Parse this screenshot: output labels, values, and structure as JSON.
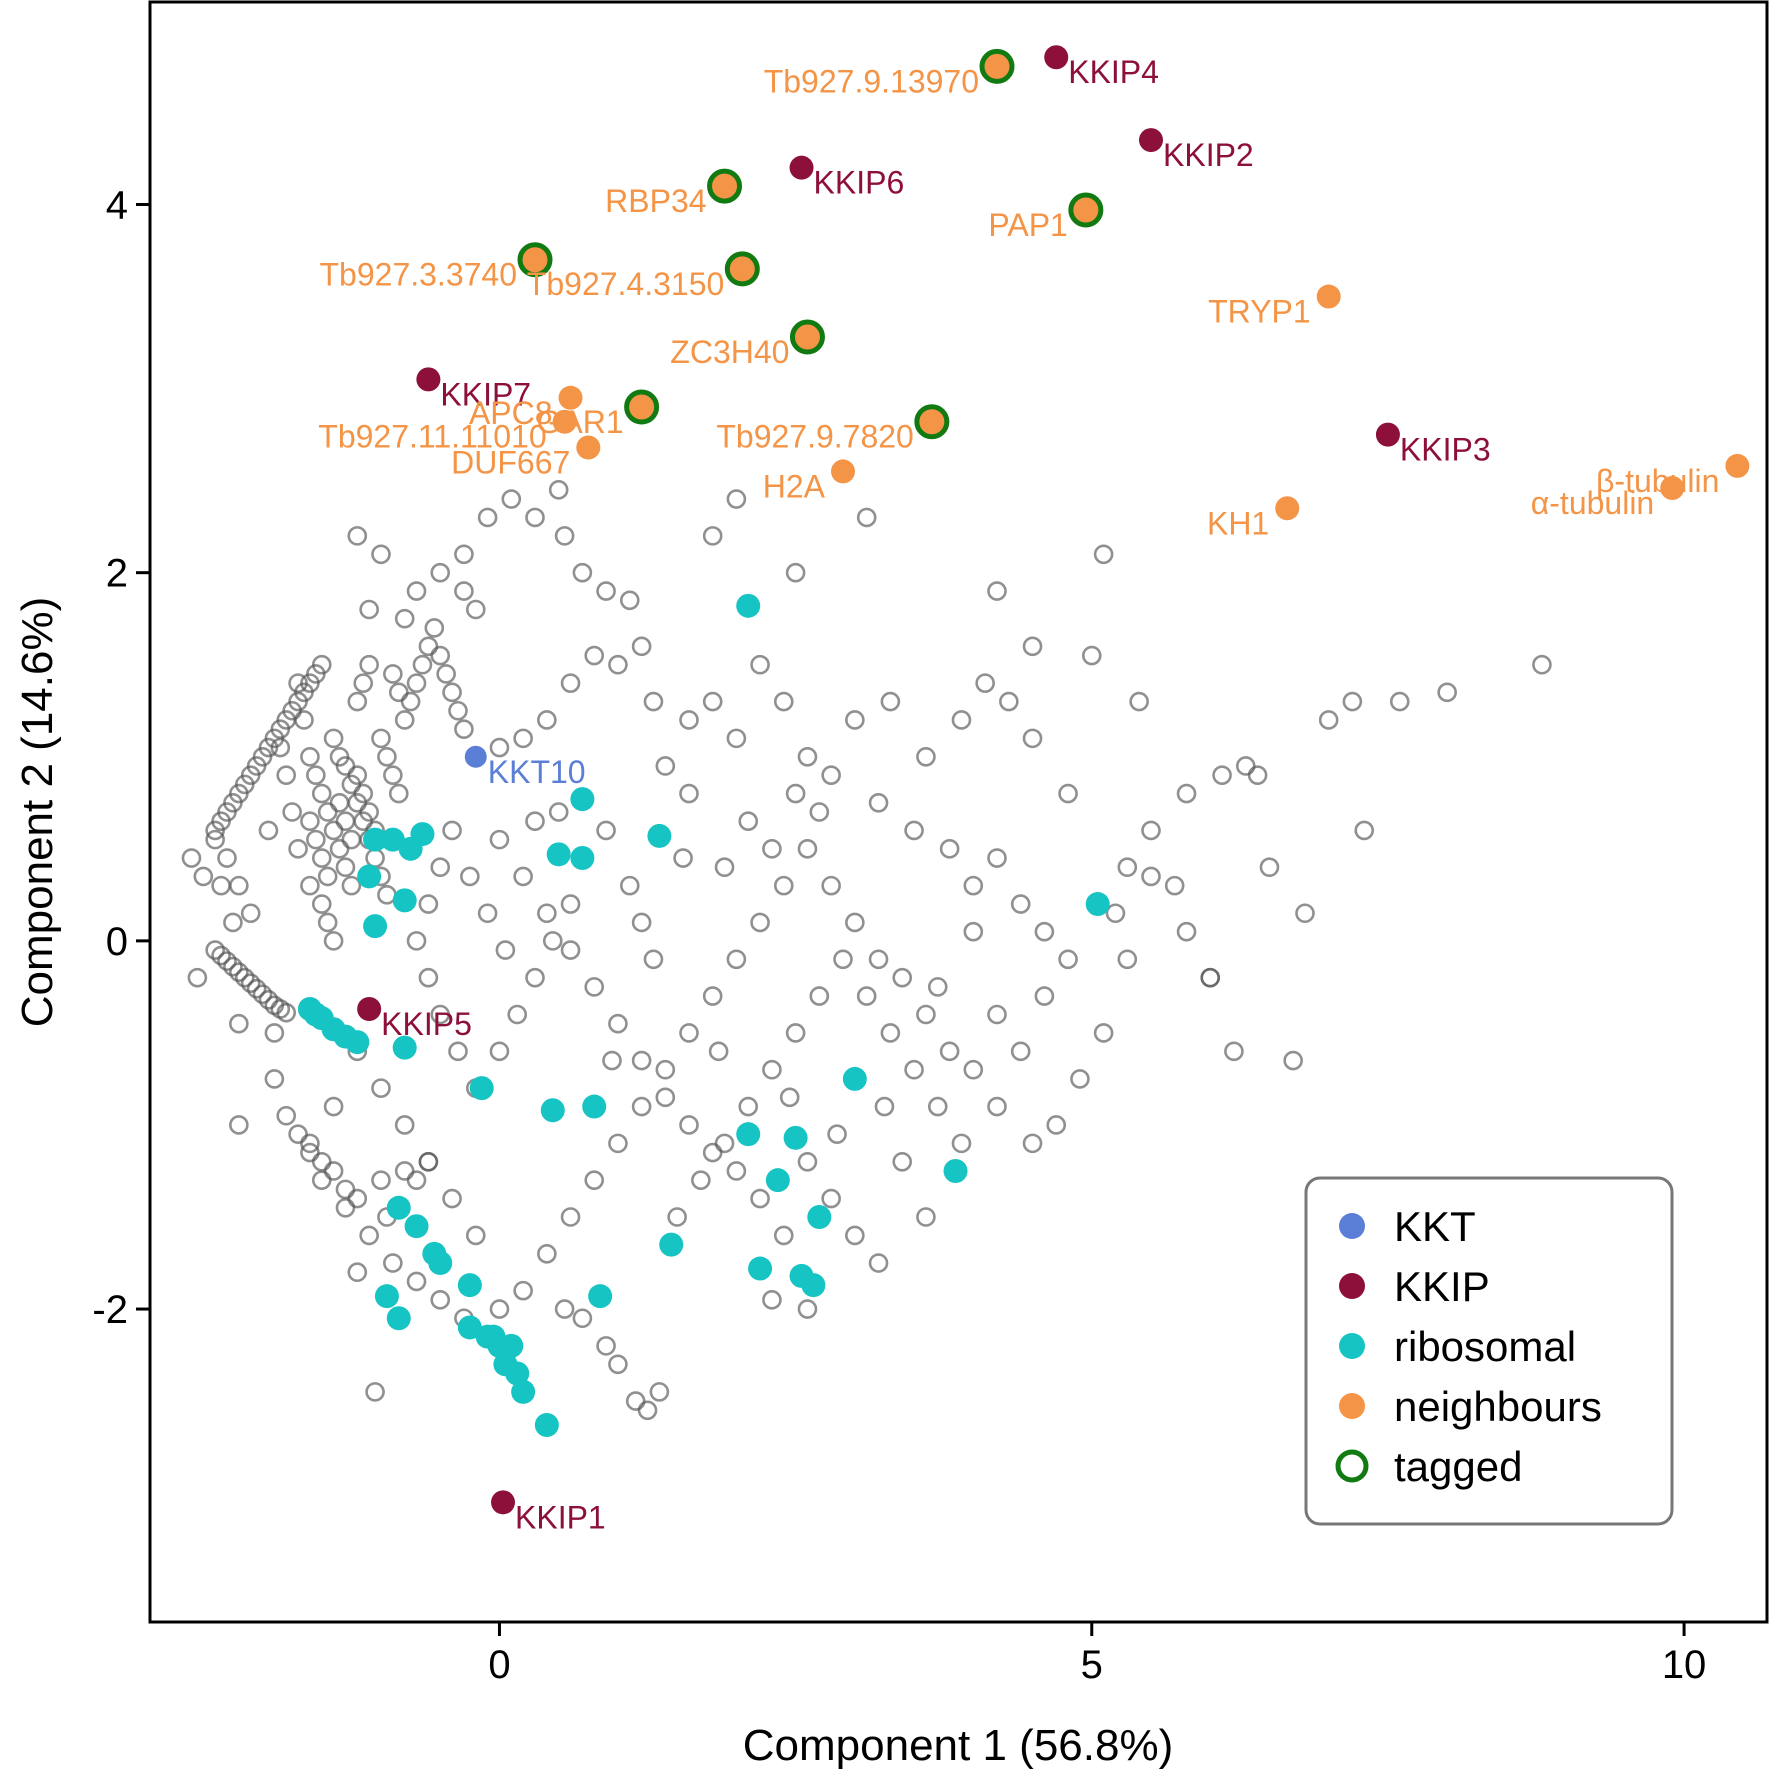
{
  "chart_data": {
    "type": "scatter",
    "title": "",
    "xlabel": "Component 1 (56.8%)",
    "ylabel": "Component 2 (14.6%)",
    "xlim": [
      -2.95,
      10.7
    ],
    "ylim": [
      -3.7,
      5.1
    ],
    "xticks": [
      0,
      5,
      10
    ],
    "yticks": [
      -2,
      0,
      2,
      4
    ],
    "grid": false,
    "legend_position": "bottom-right",
    "colors": {
      "background_points": "#555555",
      "kkt": "#5b7fd6",
      "kkip": "#8c1039",
      "ribosomal": "#17c4c4",
      "neighbours": "#f49446",
      "tagged": "#117a11",
      "axis": "#000000"
    },
    "legend": [
      {
        "key": "kkt",
        "label": "KKT",
        "marker": "filled"
      },
      {
        "key": "kkip",
        "label": "KKIP",
        "marker": "filled"
      },
      {
        "key": "ribosomal",
        "label": "ribosomal",
        "marker": "filled"
      },
      {
        "key": "neighbours",
        "label": "neighbours",
        "marker": "filled"
      },
      {
        "key": "tagged",
        "label": "tagged",
        "marker": "ring"
      }
    ],
    "kkt": [
      {
        "x": -0.2,
        "y": 1.0,
        "label": "KKT10"
      }
    ],
    "kkip": [
      {
        "x": 4.7,
        "y": 4.8,
        "label": "KKIP4"
      },
      {
        "x": 5.5,
        "y": 4.35,
        "label": "KKIP2"
      },
      {
        "x": 2.55,
        "y": 4.2,
        "label": "KKIP6"
      },
      {
        "x": -0.6,
        "y": 3.05,
        "label": "KKIP7"
      },
      {
        "x": 7.5,
        "y": 2.75,
        "label": "KKIP3"
      },
      {
        "x": -1.1,
        "y": -0.37,
        "label": "KKIP5"
      },
      {
        "x": 0.03,
        "y": -3.05,
        "label": "KKIP1"
      }
    ],
    "neighbours": [
      {
        "x": 4.2,
        "y": 4.75,
        "label": "Tb927.9.13970",
        "tagged": true
      },
      {
        "x": 1.9,
        "y": 4.1,
        "label": "RBP34",
        "tagged": true
      },
      {
        "x": 4.95,
        "y": 3.97,
        "label": "PAP1",
        "tagged": true
      },
      {
        "x": 0.3,
        "y": 3.7,
        "label": "Tb927.3.3740",
        "tagged": true
      },
      {
        "x": 2.05,
        "y": 3.65,
        "label": "Tb927.4.3150",
        "tagged": true
      },
      {
        "x": 7.0,
        "y": 3.5,
        "label": "TRYP1",
        "tagged": false
      },
      {
        "x": 2.6,
        "y": 3.28,
        "label": "ZC3H40",
        "tagged": true
      },
      {
        "x": 0.6,
        "y": 2.95,
        "label": "APC8",
        "tagged": false
      },
      {
        "x": 1.2,
        "y": 2.9,
        "label": "GAR1",
        "tagged": true
      },
      {
        "x": 0.55,
        "y": 2.82,
        "label": "Tb927.11.11010",
        "tagged": false
      },
      {
        "x": 3.65,
        "y": 2.82,
        "label": "Tb927.9.7820",
        "tagged": true
      },
      {
        "x": 0.75,
        "y": 2.68,
        "label": "DUF667",
        "tagged": false
      },
      {
        "x": 2.9,
        "y": 2.55,
        "label": "H2A",
        "tagged": false
      },
      {
        "x": 10.45,
        "y": 2.58,
        "label": "β-tubulin",
        "tagged": false
      },
      {
        "x": 9.9,
        "y": 2.46,
        "label": "α-tubulin",
        "tagged": false
      },
      {
        "x": 6.65,
        "y": 2.35,
        "label": "KH1",
        "tagged": false
      }
    ],
    "ribosomal": [
      [
        2.1,
        1.82
      ],
      [
        0.7,
        0.77
      ],
      [
        1.35,
        0.57
      ],
      [
        0.5,
        0.47
      ],
      [
        0.7,
        0.45
      ],
      [
        -1.05,
        0.55
      ],
      [
        -0.9,
        0.55
      ],
      [
        -0.75,
        0.5
      ],
      [
        -0.65,
        0.58
      ],
      [
        -1.1,
        0.35
      ],
      [
        -0.8,
        0.22
      ],
      [
        -1.05,
        0.08
      ],
      [
        5.05,
        0.2
      ],
      [
        -0.8,
        -0.58
      ],
      [
        -1.6,
        -0.37
      ],
      [
        -1.5,
        -0.42
      ],
      [
        -1.4,
        -0.48
      ],
      [
        -1.3,
        -0.52
      ],
      [
        -1.2,
        -0.55
      ],
      [
        -1.55,
        -0.4
      ],
      [
        -0.15,
        -0.8
      ],
      [
        3.0,
        -0.75
      ],
      [
        0.8,
        -0.9
      ],
      [
        0.45,
        -0.92
      ],
      [
        2.1,
        -1.05
      ],
      [
        2.5,
        -1.07
      ],
      [
        2.35,
        -1.3
      ],
      [
        3.85,
        -1.25
      ],
      [
        2.7,
        -1.5
      ],
      [
        -0.85,
        -1.45
      ],
      [
        -0.7,
        -1.55
      ],
      [
        -0.55,
        -1.7
      ],
      [
        -0.5,
        -1.75
      ],
      [
        1.45,
        -1.65
      ],
      [
        2.2,
        -1.78
      ],
      [
        2.55,
        -1.82
      ],
      [
        2.65,
        -1.87
      ],
      [
        -0.25,
        -1.87
      ],
      [
        0.85,
        -1.93
      ],
      [
        -0.95,
        -1.93
      ],
      [
        -0.85,
        -2.05
      ],
      [
        -0.25,
        -2.1
      ],
      [
        -0.1,
        -2.15
      ],
      [
        0.0,
        -2.2
      ],
      [
        0.05,
        -2.3
      ],
      [
        0.15,
        -2.35
      ],
      [
        0.2,
        -2.45
      ],
      [
        0.4,
        -2.63
      ],
      [
        -0.05,
        -2.15
      ],
      [
        0.1,
        -2.2
      ]
    ],
    "background_points": [
      [
        -2.4,
        0.6
      ],
      [
        -2.35,
        0.65
      ],
      [
        -2.3,
        0.7
      ],
      [
        -2.25,
        0.75
      ],
      [
        -2.2,
        0.8
      ],
      [
        -2.15,
        0.85
      ],
      [
        -2.1,
        0.9
      ],
      [
        -2.05,
        0.95
      ],
      [
        -2.0,
        1.0
      ],
      [
        -1.95,
        1.05
      ],
      [
        -1.9,
        1.1
      ],
      [
        -1.85,
        1.15
      ],
      [
        -1.8,
        1.2
      ],
      [
        -1.75,
        1.25
      ],
      [
        -1.7,
        1.3
      ],
      [
        -1.65,
        1.35
      ],
      [
        -1.6,
        1.4
      ],
      [
        -1.55,
        1.45
      ],
      [
        -1.5,
        1.5
      ],
      [
        -2.4,
        0.55
      ],
      [
        -2.3,
        0.45
      ],
      [
        -2.2,
        0.3
      ],
      [
        -2.1,
        0.15
      ],
      [
        -2.4,
        -0.05
      ],
      [
        -2.35,
        -0.08
      ],
      [
        -2.3,
        -0.11
      ],
      [
        -2.25,
        -0.14
      ],
      [
        -2.2,
        -0.17
      ],
      [
        -2.15,
        -0.2
      ],
      [
        -2.1,
        -0.23
      ],
      [
        -2.05,
        -0.26
      ],
      [
        -2.0,
        -0.29
      ],
      [
        -1.95,
        -0.32
      ],
      [
        -1.9,
        -0.35
      ],
      [
        -1.85,
        -0.37
      ],
      [
        -1.8,
        -0.39
      ],
      [
        -2.5,
        0.35
      ],
      [
        -2.35,
        0.3
      ],
      [
        -2.25,
        0.1
      ],
      [
        -2.2,
        -0.45
      ],
      [
        -1.9,
        -0.5
      ],
      [
        -1.7,
        1.4
      ],
      [
        -1.65,
        1.2
      ],
      [
        -1.6,
        1.0
      ],
      [
        -1.55,
        0.9
      ],
      [
        -1.5,
        0.8
      ],
      [
        -1.45,
        0.7
      ],
      [
        -1.4,
        0.6
      ],
      [
        -1.35,
        0.5
      ],
      [
        -1.3,
        0.4
      ],
      [
        -1.25,
        0.3
      ],
      [
        -1.2,
        0.9
      ],
      [
        -1.15,
        0.8
      ],
      [
        -1.1,
        0.7
      ],
      [
        -1.05,
        0.6
      ],
      [
        -1.0,
        1.1
      ],
      [
        -0.95,
        1.0
      ],
      [
        -0.9,
        0.9
      ],
      [
        -0.85,
        0.8
      ],
      [
        -0.8,
        1.2
      ],
      [
        -0.75,
        1.3
      ],
      [
        -0.7,
        1.4
      ],
      [
        -0.65,
        1.5
      ],
      [
        -0.6,
        1.6
      ],
      [
        -0.55,
        1.7
      ],
      [
        -0.5,
        1.55
      ],
      [
        -0.45,
        1.45
      ],
      [
        -0.4,
        1.35
      ],
      [
        -0.35,
        1.25
      ],
      [
        -0.3,
        1.15
      ],
      [
        -1.4,
        1.1
      ],
      [
        -1.35,
        1.0
      ],
      [
        -1.3,
        0.95
      ],
      [
        -1.25,
        0.85
      ],
      [
        -1.2,
        0.75
      ],
      [
        -1.15,
        0.65
      ],
      [
        -1.1,
        0.55
      ],
      [
        -1.05,
        0.45
      ],
      [
        -1.0,
        0.35
      ],
      [
        -0.95,
        0.25
      ],
      [
        -1.5,
        0.2
      ],
      [
        -1.45,
        0.1
      ],
      [
        -1.4,
        0.0
      ],
      [
        -1.6,
        0.3
      ],
      [
        -1.7,
        0.5
      ],
      [
        -1.75,
        0.7
      ],
      [
        -1.8,
        0.9
      ],
      [
        -1.85,
        1.05
      ],
      [
        -1.2,
        1.3
      ],
      [
        -1.15,
        1.4
      ],
      [
        -1.1,
        1.5
      ],
      [
        -0.9,
        1.45
      ],
      [
        -0.85,
        1.35
      ],
      [
        -1.6,
        0.65
      ],
      [
        -1.55,
        0.55
      ],
      [
        -1.5,
        0.45
      ],
      [
        -1.45,
        0.35
      ],
      [
        -1.35,
        0.75
      ],
      [
        -1.3,
        0.65
      ],
      [
        -1.25,
        0.55
      ],
      [
        -1.95,
        0.6
      ],
      [
        -0.7,
        1.9
      ],
      [
        -0.5,
        2.0
      ],
      [
        -0.3,
        1.9
      ],
      [
        -0.2,
        1.8
      ],
      [
        -0.1,
        2.3
      ],
      [
        -0.3,
        2.1
      ],
      [
        -1.0,
        2.1
      ],
      [
        -1.2,
        2.2
      ],
      [
        -1.1,
        1.8
      ],
      [
        -0.8,
        1.75
      ],
      [
        0.1,
        2.4
      ],
      [
        0.3,
        2.3
      ],
      [
        0.5,
        2.45
      ],
      [
        0.55,
        2.2
      ],
      [
        0.7,
        2.0
      ],
      [
        0.9,
        1.9
      ],
      [
        1.1,
        1.85
      ],
      [
        1.2,
        1.6
      ],
      [
        1.0,
        1.5
      ],
      [
        0.8,
        1.55
      ],
      [
        0.6,
        1.4
      ],
      [
        0.4,
        1.2
      ],
      [
        0.2,
        1.1
      ],
      [
        0.0,
        1.05
      ],
      [
        1.3,
        1.3
      ],
      [
        1.6,
        1.2
      ],
      [
        1.8,
        1.3
      ],
      [
        2.0,
        1.1
      ],
      [
        2.2,
        1.5
      ],
      [
        2.4,
        1.3
      ],
      [
        2.6,
        1.0
      ],
      [
        2.5,
        0.8
      ],
      [
        2.8,
        0.9
      ],
      [
        3.0,
        1.2
      ],
      [
        3.3,
        1.3
      ],
      [
        3.6,
        1.0
      ],
      [
        3.9,
        1.2
      ],
      [
        4.1,
        1.4
      ],
      [
        4.3,
        1.3
      ],
      [
        4.5,
        1.1
      ],
      [
        4.8,
        0.8
      ],
      [
        5.0,
        1.55
      ],
      [
        5.4,
        1.3
      ],
      [
        5.8,
        0.8
      ],
      [
        6.1,
        0.9
      ],
      [
        6.3,
        0.95
      ],
      [
        6.5,
        0.4
      ],
      [
        6.8,
        0.15
      ],
      [
        7.0,
        1.2
      ],
      [
        7.2,
        1.3
      ],
      [
        7.3,
        0.6
      ],
      [
        7.6,
        1.3
      ],
      [
        8.0,
        1.35
      ],
      [
        8.8,
        1.5
      ],
      [
        6.4,
        0.9
      ],
      [
        3.1,
        2.3
      ],
      [
        2.0,
        2.4
      ],
      [
        1.8,
        2.2
      ],
      [
        2.5,
        2.0
      ],
      [
        4.2,
        1.9
      ],
      [
        5.1,
        2.1
      ],
      [
        4.5,
        1.6
      ],
      [
        3.5,
        0.6
      ],
      [
        3.8,
        0.5
      ],
      [
        4.0,
        0.3
      ],
      [
        4.2,
        0.45
      ],
      [
        4.4,
        0.2
      ],
      [
        4.6,
        0.05
      ],
      [
        4.8,
        -0.1
      ],
      [
        5.3,
        0.4
      ],
      [
        5.5,
        0.6
      ],
      [
        5.7,
        0.3
      ],
      [
        6.0,
        -0.2
      ],
      [
        6.2,
        -0.6
      ],
      [
        5.3,
        -0.1
      ],
      [
        5.1,
        -0.5
      ],
      [
        4.9,
        -0.75
      ],
      [
        4.7,
        -1.0
      ],
      [
        4.5,
        -1.1
      ],
      [
        4.2,
        -0.9
      ],
      [
        4.0,
        -0.7
      ],
      [
        3.8,
        -0.6
      ],
      [
        3.6,
        -0.4
      ],
      [
        3.4,
        -0.2
      ],
      [
        3.2,
        -0.1
      ],
      [
        3.0,
        0.1
      ],
      [
        2.8,
        0.3
      ],
      [
        2.6,
        0.5
      ],
      [
        2.4,
        0.3
      ],
      [
        2.2,
        0.1
      ],
      [
        2.0,
        -0.1
      ],
      [
        1.8,
        -0.3
      ],
      [
        1.6,
        -0.5
      ],
      [
        1.4,
        -0.7
      ],
      [
        1.2,
        -0.9
      ],
      [
        1.0,
        -1.1
      ],
      [
        0.8,
        -1.3
      ],
      [
        0.6,
        -1.5
      ],
      [
        0.4,
        -1.7
      ],
      [
        0.2,
        -1.9
      ],
      [
        0.0,
        -2.0
      ],
      [
        -0.2,
        -1.6
      ],
      [
        -0.4,
        -1.4
      ],
      [
        -0.6,
        -1.2
      ],
      [
        -0.8,
        -1.0
      ],
      [
        -1.0,
        -0.8
      ],
      [
        -1.2,
        -0.6
      ],
      [
        -1.4,
        -0.9
      ],
      [
        -1.6,
        -1.1
      ],
      [
        -1.5,
        -1.3
      ],
      [
        -1.3,
        -1.45
      ],
      [
        -1.1,
        -1.6
      ],
      [
        -0.9,
        -1.75
      ],
      [
        -0.7,
        -1.85
      ],
      [
        -0.5,
        -1.95
      ],
      [
        -0.3,
        -2.05
      ],
      [
        -1.9,
        -0.75
      ],
      [
        -1.8,
        -0.95
      ],
      [
        -1.7,
        -1.05
      ],
      [
        -1.6,
        -1.15
      ],
      [
        -1.5,
        -1.2
      ],
      [
        -1.4,
        -1.25
      ],
      [
        -1.3,
        -1.35
      ],
      [
        -1.2,
        -1.4
      ],
      [
        -1.0,
        -1.3
      ],
      [
        -0.8,
        -1.25
      ],
      [
        -0.6,
        -1.2
      ],
      [
        0.9,
        -2.2
      ],
      [
        1.0,
        -2.3
      ],
      [
        1.15,
        -2.5
      ],
      [
        1.25,
        -2.55
      ],
      [
        1.35,
        -2.45
      ],
      [
        0.55,
        -2.0
      ],
      [
        0.7,
        -2.05
      ],
      [
        1.5,
        -1.5
      ],
      [
        1.7,
        -1.3
      ],
      [
        1.9,
        -1.1
      ],
      [
        2.1,
        -0.9
      ],
      [
        2.3,
        -0.7
      ],
      [
        2.5,
        -0.5
      ],
      [
        2.7,
        -0.3
      ],
      [
        2.9,
        -0.1
      ],
      [
        3.1,
        -0.3
      ],
      [
        3.3,
        -0.5
      ],
      [
        3.5,
        -0.7
      ],
      [
        3.7,
        -0.9
      ],
      [
        3.9,
        -1.1
      ],
      [
        2.6,
        -1.2
      ],
      [
        2.8,
        -1.4
      ],
      [
        3.0,
        -1.6
      ],
      [
        3.2,
        -1.75
      ],
      [
        2.4,
        -1.6
      ],
      [
        2.2,
        -1.4
      ],
      [
        2.0,
        -1.25
      ],
      [
        1.8,
        -1.15
      ],
      [
        1.6,
        -1.0
      ],
      [
        1.4,
        -0.85
      ],
      [
        1.2,
        -0.65
      ],
      [
        1.0,
        -0.45
      ],
      [
        0.8,
        -0.25
      ],
      [
        0.6,
        -0.05
      ],
      [
        0.4,
        0.15
      ],
      [
        0.2,
        0.35
      ],
      [
        0.0,
        0.55
      ],
      [
        0.3,
        0.65
      ],
      [
        0.5,
        0.7
      ],
      [
        0.9,
        0.6
      ],
      [
        1.1,
        0.3
      ],
      [
        1.2,
        0.1
      ],
      [
        1.3,
        -0.1
      ],
      [
        0.6,
        0.2
      ],
      [
        0.45,
        0.0
      ],
      [
        0.3,
        -0.2
      ],
      [
        0.15,
        -0.4
      ],
      [
        0.0,
        -0.6
      ],
      [
        -0.2,
        -0.8
      ],
      [
        -0.35,
        -0.6
      ],
      [
        -0.5,
        -0.4
      ],
      [
        -0.6,
        -0.2
      ],
      [
        -0.7,
        0.0
      ],
      [
        -0.6,
        0.2
      ],
      [
        -0.5,
        0.4
      ],
      [
        -0.4,
        0.6
      ],
      [
        -0.25,
        0.35
      ],
      [
        -0.1,
        0.15
      ],
      [
        0.05,
        -0.05
      ],
      [
        2.3,
        -1.95
      ],
      [
        2.6,
        -2.0
      ],
      [
        3.4,
        -1.2
      ],
      [
        3.6,
        -1.5
      ],
      [
        4.2,
        -0.4
      ],
      [
        4.4,
        -0.6
      ],
      [
        4.6,
        -0.3
      ],
      [
        5.2,
        0.15
      ],
      [
        5.8,
        0.05
      ],
      [
        6.7,
        -0.65
      ],
      [
        6.0,
        -0.2
      ],
      [
        5.5,
        0.35
      ],
      [
        1.9,
        0.4
      ],
      [
        2.1,
        0.65
      ],
      [
        1.6,
        0.8
      ],
      [
        1.4,
        0.95
      ],
      [
        2.7,
        0.7
      ],
      [
        3.2,
        0.75
      ],
      [
        2.3,
        0.5
      ],
      [
        -2.6,
        0.45
      ],
      [
        -2.55,
        -0.2
      ],
      [
        -2.2,
        -1.0
      ],
      [
        -1.05,
        -2.45
      ],
      [
        -1.2,
        -1.8
      ],
      [
        -0.95,
        -1.5
      ],
      [
        -0.7,
        -1.3
      ],
      [
        3.7,
        -0.25
      ],
      [
        4.0,
        0.05
      ],
      [
        1.55,
        0.45
      ],
      [
        0.95,
        -0.65
      ],
      [
        1.85,
        -0.6
      ],
      [
        2.45,
        -0.85
      ],
      [
        2.85,
        -1.05
      ],
      [
        3.25,
        -0.9
      ]
    ]
  }
}
